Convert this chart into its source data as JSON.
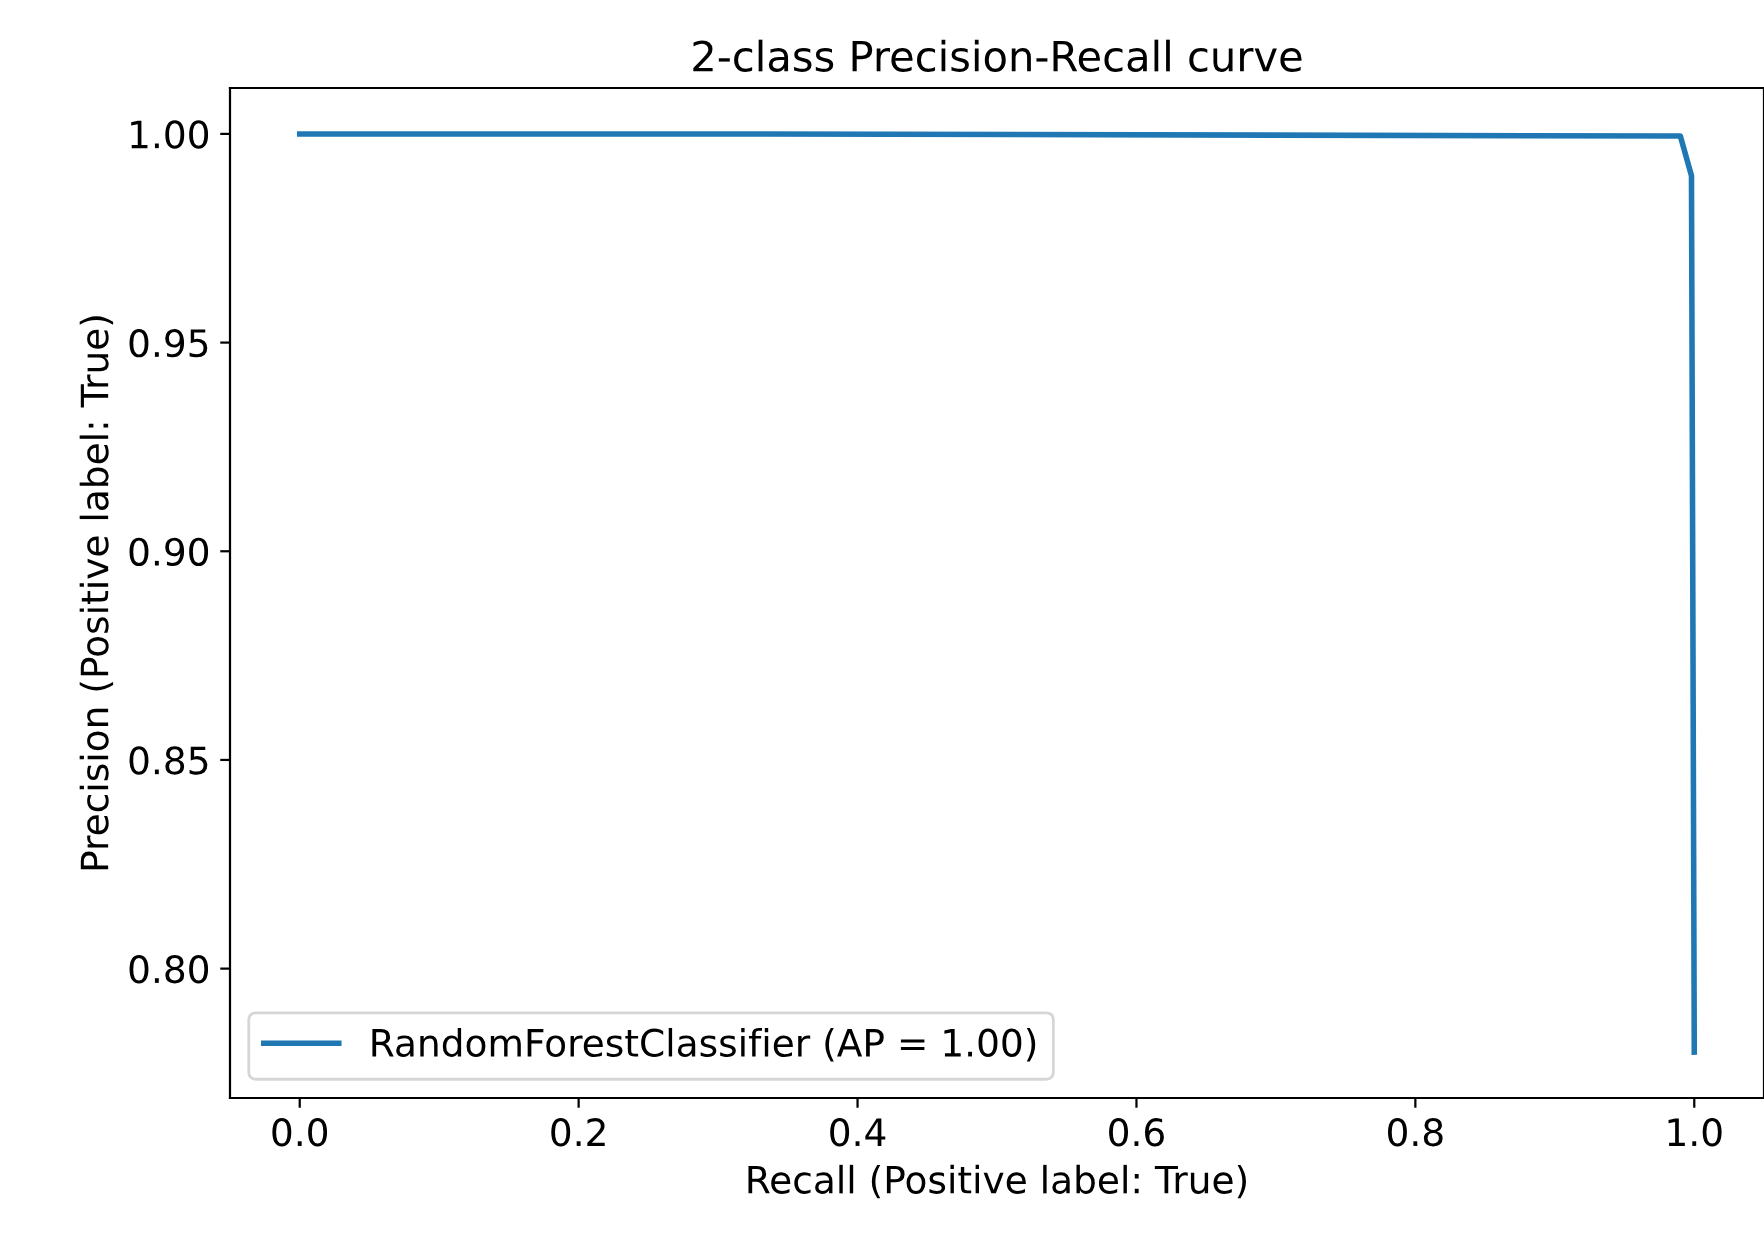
{
  "chart_data": {
    "type": "line",
    "title": "2-class Precision-Recall curve",
    "xlabel": "Recall (Positive label: True)",
    "ylabel": "Precision (Positive label: True)",
    "series": [
      {
        "name": "RandomForestClassifier (AP = 1.00)",
        "color": "#1f77b4",
        "x": [
          0.0,
          0.3,
          0.99,
          0.998,
          1.0
        ],
        "values": [
          1.0,
          1.0,
          0.9995,
          0.99,
          0.78
        ]
      }
    ],
    "xlim": [
      -0.05,
      1.05
    ],
    "ylim": [
      0.769,
      1.011
    ],
    "xticks": [
      {
        "value": 0.0,
        "label": "0.0"
      },
      0.2,
      0.4,
      0.6,
      0.8,
      {
        "value": 1.0,
        "label": "1.0"
      }
    ],
    "yticks": [
      {
        "value": 0.8,
        "label": "0.80"
      },
      {
        "value": 0.85,
        "label": "0.85"
      },
      {
        "value": 0.9,
        "label": "0.90"
      },
      {
        "value": 0.95,
        "label": "0.95"
      },
      {
        "value": 1.0,
        "label": "1.00"
      }
    ],
    "legend": "bottom left",
    "grid": false,
    "marker": "none",
    "line_style": "solid"
  }
}
